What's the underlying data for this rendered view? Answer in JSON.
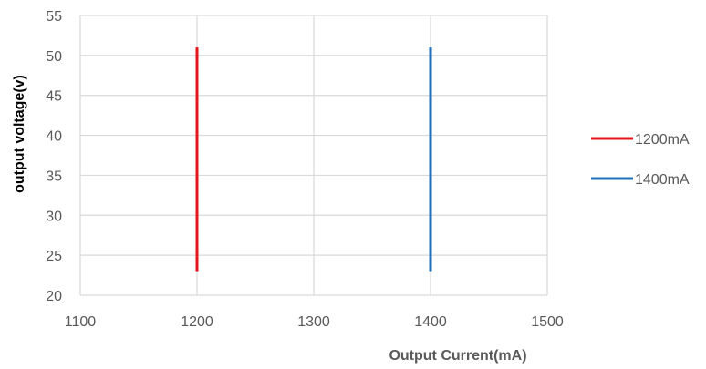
{
  "chart_data": {
    "type": "line",
    "title": "",
    "xlabel": "Output Current(mA)",
    "ylabel": "output voltage(v)",
    "xlim": [
      1100,
      1500
    ],
    "ylim": [
      20,
      55
    ],
    "xticks": [
      1100,
      1200,
      1300,
      1400,
      1500
    ],
    "yticks": [
      20,
      25,
      30,
      35,
      40,
      45,
      50,
      55
    ],
    "grid": true,
    "legend_position": "right",
    "series": [
      {
        "name": "1200mA",
        "color": "#e8141c",
        "x": [
          1200,
          1200
        ],
        "y": [
          23,
          51
        ]
      },
      {
        "name": "1400mA",
        "color": "#1f6fba",
        "x": [
          1400,
          1400
        ],
        "y": [
          23,
          51
        ]
      }
    ],
    "colors": {
      "xlabel": "#595959",
      "ylabel": "#000000",
      "grid": "#d9d9d9",
      "tick_text": "#595959"
    }
  }
}
